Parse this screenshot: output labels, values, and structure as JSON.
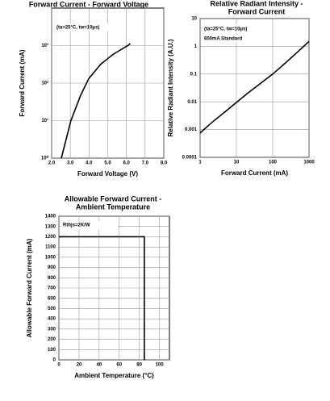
{
  "chart_data": [
    {
      "type": "line",
      "title": [
        "Forward Current - Forward Voltage"
      ],
      "xlabel": "Forward Voltage (V)",
      "ylabel": "Forward Current (mA)",
      "annotations": [
        "(ta=25°C, tw=10μs)"
      ],
      "x": [
        2.52,
        3.03,
        3.55,
        3.98,
        4.63,
        5.28,
        6.14,
        6.2
      ],
      "values": [
        1,
        10,
        47,
        130,
        320,
        580,
        1050,
        1150
      ],
      "color": "#000000",
      "grid": true,
      "xlim": [
        2,
        8
      ],
      "xticks": [
        {
          "value": 2,
          "label": "2.0"
        },
        {
          "value": 3,
          "label": "3.0"
        },
        {
          "value": 4,
          "label": "4.0"
        },
        {
          "value": 5,
          "label": "5.0"
        },
        {
          "value": 6,
          "label": "6.0"
        },
        {
          "value": 7,
          "label": "7.0"
        },
        {
          "value": 8,
          "label": "8.0"
        }
      ],
      "ylim": [
        1,
        10000
      ],
      "yscale": "log",
      "yticks": [
        {
          "value": 1,
          "label": "10⁰"
        },
        {
          "value": 10,
          "label": "10¹"
        },
        {
          "value": 100,
          "label": "10²"
        },
        {
          "value": 1000,
          "label": "10³"
        }
      ]
    },
    {
      "type": "line",
      "title": [
        "Relative Radiant Intensity -",
        "Forward Current"
      ],
      "xlabel": "Forward Current (mA)",
      "ylabel": "Relative Radiant Intensity (A.U.)",
      "annotations": [
        "(ta=25°C, tw=10μs)",
        "600mA Standard"
      ],
      "x": [
        1,
        2,
        5,
        10,
        20,
        50,
        100,
        200,
        500,
        1000
      ],
      "values": [
        0.00075,
        0.0017,
        0.0045,
        0.0095,
        0.02,
        0.05,
        0.1,
        0.22,
        0.65,
        1.5
      ],
      "color": "#000000",
      "grid": true,
      "xlim": [
        1,
        1000
      ],
      "xscale": "log",
      "xticks": [
        1,
        10,
        100,
        1000
      ],
      "ylim": [
        0.0001,
        10
      ],
      "yscale": "log",
      "yticks": [
        0.0001,
        0.001,
        0.01,
        0.1,
        1,
        10
      ]
    },
    {
      "type": "line",
      "title": [
        "Allowable Forward Current -",
        "Ambient Temperature"
      ],
      "xlabel": "Ambient Temperature (°C)",
      "ylabel": "Allowable Forward Current (mA)",
      "annotations": [
        "Rthjs=2K/W"
      ],
      "x": [
        0,
        85,
        85
      ],
      "values": [
        1200,
        1200,
        0
      ],
      "color": "#000000",
      "grid": true,
      "xlim": [
        0,
        110
      ],
      "xticks": [
        0,
        20,
        40,
        60,
        80,
        100
      ],
      "ylim": [
        0,
        1400
      ],
      "yticks": [
        0,
        100,
        200,
        300,
        400,
        500,
        600,
        700,
        800,
        900,
        1000,
        1100,
        1200,
        1300,
        1400
      ]
    }
  ]
}
